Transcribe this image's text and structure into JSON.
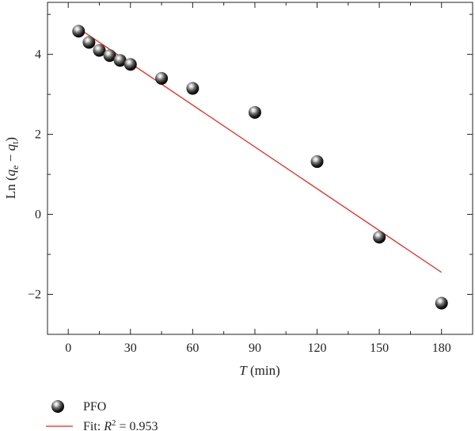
{
  "chart_data": {
    "type": "scatter",
    "xlabel": {
      "var": "T",
      "unit": " (min)"
    },
    "ylabel": {
      "prefix": "Ln (",
      "v1": "q",
      "s1": "e",
      "mid": " − ",
      "v2": "q",
      "s2": "t",
      "suffix": ")"
    },
    "xlim": [
      -10,
      195
    ],
    "ylim": [
      -3,
      5.3
    ],
    "xticks": [
      0,
      30,
      60,
      90,
      120,
      150,
      180
    ],
    "xtick_labels": [
      "0",
      "30",
      "60",
      "90",
      "120",
      "150",
      "180"
    ],
    "yticks": [
      -2,
      0,
      2,
      4
    ],
    "ytick_labels": [
      "−2",
      "0",
      "2",
      "4"
    ],
    "xminor": [
      15,
      45,
      75,
      105,
      135,
      165
    ],
    "yminor": [
      -1,
      1,
      3,
      5
    ],
    "series": [
      {
        "name": "PFO",
        "kind": "scatter",
        "x": [
          5,
          10,
          15,
          20,
          25,
          30,
          45,
          60,
          90,
          120,
          150,
          180
        ],
        "y": [
          4.58,
          4.3,
          4.1,
          3.97,
          3.85,
          3.75,
          3.4,
          3.15,
          2.55,
          1.32,
          -0.57,
          -2.22
        ]
      },
      {
        "kind": "line",
        "color": "#e8261e",
        "x": [
          5,
          180
        ],
        "y": [
          4.65,
          -1.45
        ]
      }
    ],
    "legend": {
      "placement": "bottom-left",
      "entries": [
        {
          "label": "PFO",
          "marker": "sphere"
        },
        {
          "label_prefix": "Fit: ",
          "label_var": "R",
          "label_sup": "2",
          "label_suffix": " = 0.953",
          "marker": "line"
        }
      ]
    }
  }
}
